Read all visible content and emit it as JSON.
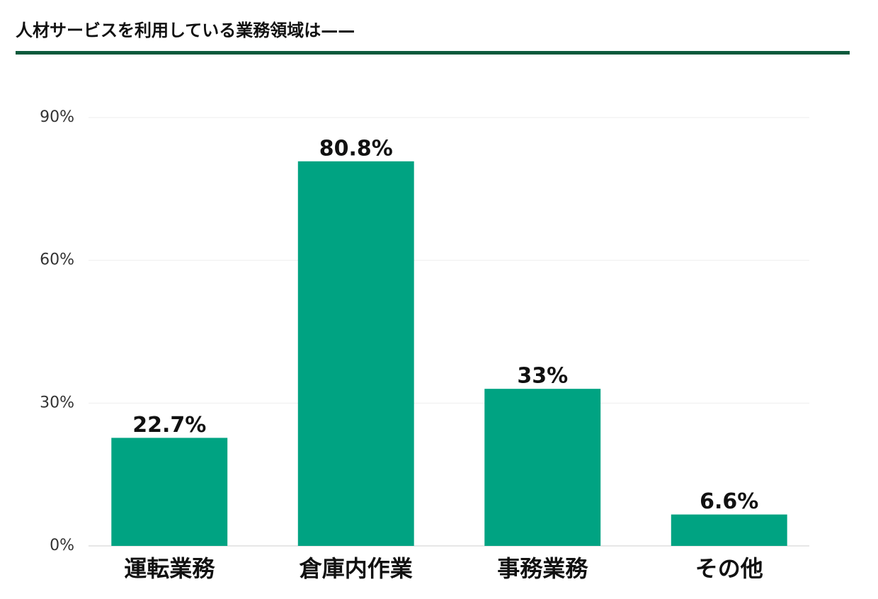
{
  "chart_data": {
    "type": "bar",
    "title": "人材サービスを利用している業務領域は——",
    "categories": [
      "運転業務",
      "倉庫内作業",
      "事務業務",
      "その他"
    ],
    "values": [
      22.7,
      80.8,
      33,
      6.6
    ],
    "value_labels": [
      "22.7%",
      "80.8%",
      "33%",
      "6.6%"
    ],
    "color": "#00a382",
    "ylim": [
      0,
      90
    ],
    "yticks": [
      {
        "value": 0,
        "label": "0%"
      },
      {
        "value": 30,
        "label": "30%"
      },
      {
        "value": 60,
        "label": "60%"
      },
      {
        "value": 90,
        "label": "90%"
      }
    ],
    "grid": true
  }
}
